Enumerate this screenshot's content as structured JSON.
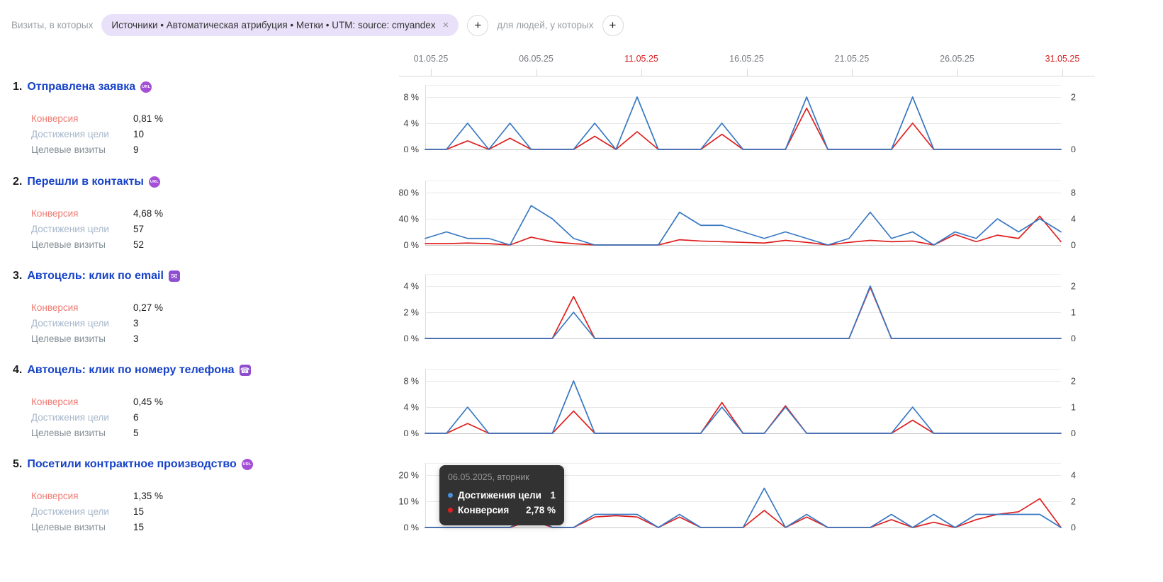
{
  "filters": {
    "visits_label": "Визиты, в которых",
    "chip_text": "Источники • Автоматическая атрибуция • Метки • UTM: source: cmyandex",
    "people_label": "для людей, у которых",
    "close_icon": "×",
    "plus_icon": "+"
  },
  "icons": {
    "url_text": "URL",
    "email_glyph": "✉",
    "phone_glyph": "☎"
  },
  "axis": {
    "dates": [
      {
        "label": "01.05.25",
        "red": false
      },
      {
        "label": "06.05.25",
        "red": false
      },
      {
        "label": "11.05.25",
        "red": true
      },
      {
        "label": "16.05.25",
        "red": false
      },
      {
        "label": "21.05.25",
        "red": false
      },
      {
        "label": "26.05.25",
        "red": false
      },
      {
        "label": "31.05.25",
        "red": true
      }
    ]
  },
  "labels": {
    "conversion": "Конверсия",
    "reaches": "Достижения цели",
    "visits": "Целевые визиты"
  },
  "goals": [
    {
      "num": "1.",
      "title": "Отправлена заявка",
      "icon": "url",
      "stats": {
        "conversion": "0,81 %",
        "reaches": "10",
        "visits": "9"
      }
    },
    {
      "num": "2.",
      "title": "Перешли в контакты",
      "icon": "url",
      "stats": {
        "conversion": "4,68 %",
        "reaches": "57",
        "visits": "52"
      }
    },
    {
      "num": "3.",
      "title": "Автоцель: клик по email",
      "icon": "email",
      "stats": {
        "conversion": "0,27 %",
        "reaches": "3",
        "visits": "3"
      }
    },
    {
      "num": "4.",
      "title": "Автоцель: клик по номеру телефона",
      "icon": "phone",
      "stats": {
        "conversion": "0,45 %",
        "reaches": "6",
        "visits": "5"
      }
    },
    {
      "num": "5.",
      "title": "Посетили контрактное производство",
      "icon": "url",
      "stats": {
        "conversion": "1,35 %",
        "reaches": "15",
        "visits": "15"
      }
    }
  ],
  "tooltip": {
    "date": "06.05.2025, вторник",
    "rows": [
      {
        "label": "Достижения цели",
        "value": "1",
        "color": "#4a90d9"
      },
      {
        "label": "Конверсия",
        "value": "2,78 %",
        "color": "#e02020"
      }
    ]
  },
  "chart_data": {
    "type": "line",
    "x_unit": "day of May 2025, daily points 1–31",
    "x_tick_labels": [
      "01.05.25",
      "06.05.25",
      "11.05.25",
      "16.05.25",
      "21.05.25",
      "26.05.25",
      "31.05.25"
    ],
    "legend": [
      {
        "name": "Достижения цели",
        "axis": "right",
        "color": "#3878c2"
      },
      {
        "name": "Конверсия",
        "axis": "left",
        "unit": "%",
        "color": "#e01f1f"
      }
    ],
    "grid": true,
    "charts": [
      {
        "title": "Отправлена заявка",
        "left_ticks": [
          "8 %",
          "4 %",
          "0 %"
        ],
        "right_ticks": [
          "2",
          "",
          "0"
        ],
        "max_left_pct": 8,
        "count_unit_pct": 4,
        "reaches": [
          0,
          0,
          1,
          0,
          1,
          0,
          0,
          0,
          1,
          0,
          2,
          0,
          0,
          0,
          1,
          0,
          0,
          0,
          2,
          0,
          0,
          0,
          0,
          2,
          0,
          0,
          0,
          0,
          0,
          0,
          0
        ],
        "conversion_pct": [
          0,
          0,
          1.3,
          0,
          1.7,
          0,
          0,
          0,
          2,
          0,
          2.7,
          0,
          0,
          0,
          2.3,
          0,
          0,
          0,
          6.3,
          0,
          0,
          0,
          0,
          4,
          0,
          0,
          0,
          0,
          0,
          0,
          0
        ]
      },
      {
        "title": "Перешли в контакты",
        "left_ticks": [
          "80 %",
          "40 %",
          "0 %"
        ],
        "right_ticks": [
          "8",
          "4",
          "0"
        ],
        "max_left_pct": 80,
        "count_unit_pct": 10,
        "reaches": [
          1,
          2,
          1,
          1,
          0,
          6,
          4,
          1,
          0,
          0,
          0,
          0,
          5,
          3,
          3,
          2,
          1,
          2,
          1,
          0,
          1,
          5,
          1,
          2,
          0,
          2,
          1,
          4,
          2,
          4,
          2
        ],
        "conversion_pct": [
          2,
          2,
          3,
          2,
          0,
          12,
          5,
          2,
          0,
          0,
          0,
          0,
          8,
          6,
          5,
          4,
          3,
          7,
          4,
          0,
          4,
          7,
          5,
          6,
          0,
          16,
          5,
          15,
          10,
          44,
          5
        ]
      },
      {
        "title": "Автоцель: клик по email",
        "left_ticks": [
          "4 %",
          "2 %",
          "0 %"
        ],
        "right_ticks": [
          "2",
          "1",
          "0"
        ],
        "max_left_pct": 4,
        "count_unit_pct": 2,
        "reaches": [
          0,
          0,
          0,
          0,
          0,
          0,
          0,
          1,
          0,
          0,
          0,
          0,
          0,
          0,
          0,
          0,
          0,
          0,
          0,
          0,
          0,
          2,
          0,
          0,
          0,
          0,
          0,
          0,
          0,
          0,
          0
        ],
        "conversion_pct": [
          0,
          0,
          0,
          0,
          0,
          0,
          0,
          3.2,
          0,
          0,
          0,
          0,
          0,
          0,
          0,
          0,
          0,
          0,
          0,
          0,
          0,
          3.9,
          0,
          0,
          0,
          0,
          0,
          0,
          0,
          0,
          0
        ]
      },
      {
        "title": "Автоцель: клик по номеру телефона",
        "left_ticks": [
          "8 %",
          "4 %",
          "0 %"
        ],
        "right_ticks": [
          "2",
          "1",
          "0"
        ],
        "max_left_pct": 8,
        "count_unit_pct": 4,
        "reaches": [
          0,
          0,
          1,
          0,
          0,
          0,
          0,
          2,
          0,
          0,
          0,
          0,
          0,
          0,
          1,
          0,
          0,
          1,
          0,
          0,
          0,
          0,
          0,
          1,
          0,
          0,
          0,
          0,
          0,
          0,
          0
        ],
        "conversion_pct": [
          0,
          0,
          1.5,
          0,
          0,
          0,
          0,
          3.4,
          0,
          0,
          0,
          0,
          0,
          0,
          4.7,
          0,
          0,
          4.2,
          0,
          0,
          0,
          0,
          0,
          2,
          0,
          0,
          0,
          0,
          0,
          0,
          0
        ]
      },
      {
        "title": "Посетили контрактное производство",
        "left_ticks": [
          "20 %",
          "10 %",
          "0 %"
        ],
        "right_ticks": [
          "4",
          "2",
          "0"
        ],
        "max_left_pct": 20,
        "count_unit_pct": 5,
        "reaches": [
          0,
          0,
          0,
          0,
          0,
          1,
          0,
          0,
          1,
          1,
          1,
          0,
          1,
          0,
          0,
          0,
          3,
          0,
          1,
          0,
          0,
          0,
          1,
          0,
          1,
          0,
          1,
          1,
          1,
          1,
          0
        ],
        "conversion_pct": [
          0,
          0,
          0,
          0,
          0,
          2.78,
          0,
          0,
          4,
          4.5,
          4,
          0,
          4,
          0,
          0,
          0,
          6.5,
          0,
          4,
          0,
          0,
          0,
          3,
          0,
          2,
          0,
          3,
          5,
          6,
          11,
          0
        ]
      }
    ]
  }
}
